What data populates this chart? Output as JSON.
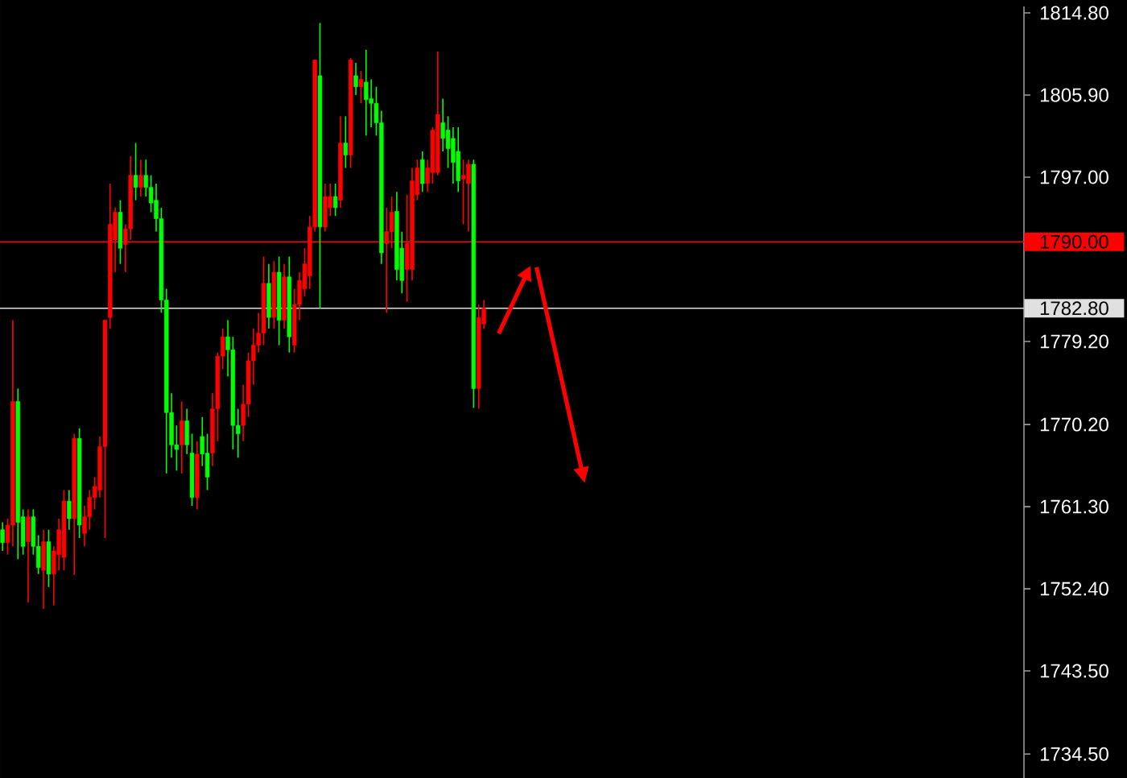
{
  "chart_data": {
    "type": "candlestick",
    "categories": [
      null,
      null,
      null,
      null,
      null,
      null,
      null,
      null,
      null,
      null,
      null,
      null,
      null,
      null,
      null,
      null,
      null,
      null,
      null,
      null,
      null,
      null,
      null,
      null,
      null,
      null,
      null,
      null,
      null,
      null,
      null,
      null,
      null,
      null,
      null,
      null,
      null,
      null,
      null,
      null,
      null,
      null,
      null,
      null,
      null,
      null,
      null,
      null,
      null,
      null,
      null,
      null,
      null,
      null,
      null,
      null,
      null,
      null,
      null,
      null,
      null,
      null,
      null,
      null,
      null,
      null,
      null,
      null,
      null,
      null,
      null,
      null,
      null,
      null,
      null,
      null,
      null,
      null,
      null,
      null,
      null,
      null,
      null,
      null,
      null,
      null,
      null,
      null,
      null,
      null,
      null,
      null,
      null,
      null,
      null,
      null,
      null,
      null,
      null,
      null,
      null,
      null,
      null,
      null,
      null,
      null,
      null,
      null,
      null,
      null,
      null,
      null,
      null,
      null,
      null,
      null,
      null,
      null,
      null,
      null,
      null,
      null,
      null,
      null,
      null,
      null,
      null,
      null,
      null,
      null,
      null,
      null,
      null,
      null,
      null,
      null,
      null,
      null,
      null,
      null,
      null,
      null,
      null,
      null,
      null,
      null,
      null,
      null,
      null,
      null,
      null,
      null,
      null,
      null,
      null,
      null,
      null,
      null,
      null,
      null,
      null,
      null,
      null,
      null,
      null,
      null,
      null,
      null,
      null,
      null,
      null,
      null,
      null,
      null,
      null,
      null,
      null,
      null,
      null,
      null,
      null,
      null,
      null,
      null,
      null,
      null,
      null,
      null,
      null,
      null,
      null,
      null,
      null,
      null,
      null,
      null,
      null,
      null,
      null,
      null
    ],
    "ohlc": [
      [
        1758.8,
        1759.6,
        1756.5,
        1757.4
      ],
      [
        1757.4,
        1760.0,
        1756.1,
        1759.3
      ],
      [
        1759.3,
        1781.5,
        1757.0,
        1772.7
      ],
      [
        1772.7,
        1774.1,
        1755.6,
        1759.6
      ],
      [
        1760.2,
        1761.0,
        1756.1,
        1757.0
      ],
      [
        1757.5,
        1761.0,
        1750.9,
        1760.2
      ],
      [
        1760.2,
        1761.0,
        1756.1,
        1757.0
      ],
      [
        1757.0,
        1758.2,
        1754.0,
        1754.7
      ],
      [
        1754.4,
        1758.8,
        1750.2,
        1757.5
      ],
      [
        1757.5,
        1758.8,
        1752.6,
        1754.0
      ],
      [
        1754.0,
        1757.0,
        1750.6,
        1756.5
      ],
      [
        1756.1,
        1760.0,
        1754.4,
        1758.8
      ],
      [
        1755.8,
        1763.1,
        1754.4,
        1761.9
      ],
      [
        1761.9,
        1763.1,
        1758.8,
        1760.0
      ],
      [
        1760.0,
        1769.2,
        1753.9,
        1768.7
      ],
      [
        1768.7,
        1769.8,
        1757.9,
        1759.3
      ],
      [
        1758.4,
        1761.4,
        1757.0,
        1760.2
      ],
      [
        1760.2,
        1763.1,
        1758.8,
        1762.3
      ],
      [
        1762.3,
        1764.5,
        1761.0,
        1763.5
      ],
      [
        1763.1,
        1768.9,
        1762.3,
        1767.8
      ],
      [
        1767.8,
        1781.5,
        1757.9,
        1781.5
      ],
      [
        1781.8,
        1796.3,
        1780.6,
        1791.9
      ],
      [
        1790.2,
        1793.7,
        1786.7,
        1793.2
      ],
      [
        1793.2,
        1794.5,
        1787.6,
        1789.3
      ],
      [
        1789.7,
        1791.9,
        1786.7,
        1791.4
      ],
      [
        1791.4,
        1799.3,
        1790.2,
        1797.2
      ],
      [
        1797.2,
        1800.7,
        1794.5,
        1795.9
      ],
      [
        1795.9,
        1798.9,
        1794.9,
        1797.2
      ],
      [
        1797.2,
        1798.9,
        1794.9,
        1795.9
      ],
      [
        1795.9,
        1797.2,
        1793.2,
        1794.2
      ],
      [
        1794.5,
        1796.3,
        1791.1,
        1792.5
      ],
      [
        1792.5,
        1793.7,
        1782.3,
        1783.7
      ],
      [
        1783.7,
        1784.9,
        1764.9,
        1771.5
      ],
      [
        1771.5,
        1773.6,
        1766.6,
        1768.0
      ],
      [
        1768.0,
        1770.1,
        1765.2,
        1767.5
      ],
      [
        1768.0,
        1772.7,
        1764.9,
        1770.6
      ],
      [
        1770.6,
        1771.9,
        1767.0,
        1768.0
      ],
      [
        1767.1,
        1769.2,
        1761.4,
        1762.3
      ],
      [
        1762.3,
        1768.4,
        1761.0,
        1767.0
      ],
      [
        1768.9,
        1771.0,
        1765.7,
        1767.0
      ],
      [
        1767.1,
        1769.2,
        1763.1,
        1764.5
      ],
      [
        1767.1,
        1773.6,
        1765.7,
        1771.9
      ],
      [
        1771.9,
        1778.0,
        1768.4,
        1777.6
      ],
      [
        1777.6,
        1780.6,
        1776.2,
        1779.7
      ],
      [
        1779.7,
        1781.5,
        1775.4,
        1778.3
      ],
      [
        1778.3,
        1779.7,
        1767.5,
        1770.1
      ],
      [
        1770.1,
        1771.9,
        1766.6,
        1769.2
      ],
      [
        1770.1,
        1774.5,
        1768.4,
        1772.4
      ],
      [
        1772.4,
        1778.0,
        1771.0,
        1777.1
      ],
      [
        1777.1,
        1780.6,
        1774.5,
        1778.8
      ],
      [
        1778.8,
        1782.3,
        1778.0,
        1780.1
      ],
      [
        1780.1,
        1788.4,
        1778.8,
        1785.5
      ],
      [
        1785.5,
        1787.6,
        1780.6,
        1781.8
      ],
      [
        1781.8,
        1787.9,
        1780.6,
        1786.7
      ],
      [
        1786.7,
        1788.4,
        1778.8,
        1781.5
      ],
      [
        1781.5,
        1787.6,
        1780.6,
        1786.2
      ],
      [
        1786.2,
        1788.4,
        1778.0,
        1779.7
      ],
      [
        1778.8,
        1784.9,
        1778.0,
        1783.2
      ],
      [
        1783.2,
        1786.7,
        1781.5,
        1785.8
      ],
      [
        1784.9,
        1789.3,
        1784.1,
        1787.6
      ],
      [
        1786.3,
        1792.8,
        1784.9,
        1791.6
      ],
      [
        1791.6,
        1809.7,
        1791.1,
        1809.7
      ],
      [
        1808.0,
        1813.7,
        1782.8,
        1791.6
      ],
      [
        1791.6,
        1796.3,
        1791.1,
        1794.9
      ],
      [
        1793.7,
        1796.3,
        1792.8,
        1794.9
      ],
      [
        1794.9,
        1796.3,
        1792.8,
        1793.7
      ],
      [
        1794.5,
        1803.6,
        1793.7,
        1800.7
      ],
      [
        1800.7,
        1803.6,
        1798.0,
        1799.4
      ],
      [
        1799.4,
        1809.9,
        1798.0,
        1809.7
      ],
      [
        1808.0,
        1809.4,
        1805.9,
        1806.8
      ],
      [
        1806.8,
        1808.5,
        1805.0,
        1807.6
      ],
      [
        1807.3,
        1810.8,
        1801.5,
        1805.4
      ],
      [
        1805.5,
        1807.6,
        1802.4,
        1805.0
      ],
      [
        1805.0,
        1806.8,
        1801.5,
        1802.9
      ],
      [
        1802.9,
        1804.2,
        1787.6,
        1788.8
      ],
      [
        1789.8,
        1793.7,
        1782.3,
        1791.1
      ],
      [
        1791.1,
        1794.9,
        1789.3,
        1793.2
      ],
      [
        1793.3,
        1795.4,
        1785.8,
        1787.0
      ],
      [
        1789.3,
        1791.1,
        1784.4,
        1785.8
      ],
      [
        1787.0,
        1795.1,
        1783.5,
        1789.8
      ],
      [
        1787.0,
        1798.0,
        1785.8,
        1796.6
      ],
      [
        1795.1,
        1798.9,
        1794.5,
        1798.0
      ],
      [
        1798.9,
        1799.8,
        1795.4,
        1796.3
      ],
      [
        1796.3,
        1798.9,
        1795.4,
        1798.0
      ],
      [
        1797.5,
        1802.4,
        1796.3,
        1802.1
      ],
      [
        1797.5,
        1810.6,
        1797.2,
        1803.8
      ],
      [
        1802.9,
        1805.5,
        1799.8,
        1801.2
      ],
      [
        1802.1,
        1803.6,
        1798.0,
        1800.1
      ],
      [
        1801.2,
        1802.4,
        1796.3,
        1798.6
      ],
      [
        1799.8,
        1802.4,
        1795.4,
        1796.6
      ],
      [
        1796.8,
        1798.9,
        1791.9,
        1797.2
      ],
      [
        1796.3,
        1798.9,
        1791.1,
        1798.4
      ],
      [
        1798.4,
        1798.9,
        1772.0,
        1774.1
      ],
      [
        1774.1,
        1783.2,
        1771.9,
        1781.8
      ],
      [
        1781.1,
        1783.7,
        1780.6,
        1782.8
      ],
      null,
      null,
      null,
      null,
      null,
      null,
      null,
      null,
      null,
      null,
      null,
      null,
      null,
      null,
      null,
      null,
      null,
      null,
      null,
      null,
      null,
      null,
      null,
      null,
      null,
      null,
      null,
      null,
      null,
      null,
      null,
      null,
      null,
      null,
      null,
      null,
      null,
      null,
      null,
      null,
      null,
      null,
      null,
      null,
      null,
      null,
      null,
      null,
      null,
      null,
      null,
      null,
      null,
      null,
      null,
      null,
      null,
      null,
      null,
      null,
      null,
      null,
      null,
      null,
      null,
      null,
      null,
      null,
      null,
      null,
      null,
      null,
      null,
      null,
      null,
      null,
      null,
      null,
      null,
      null,
      null,
      null,
      null,
      null,
      null,
      null,
      null,
      null,
      null,
      null,
      null,
      null,
      null,
      null,
      null,
      null,
      null,
      null,
      null,
      null,
      null,
      null,
      null,
      null,
      null
    ],
    "colors": [
      "#00ff00",
      "#ff0000",
      "#ff0000",
      "#00ff00",
      "#00ff00",
      "#ff0000",
      "#00ff00",
      "#00ff00",
      "#ff0000",
      "#00ff00",
      "#ff0000",
      "#ff0000",
      "#ff0000",
      "#00ff00",
      "#ff0000",
      "#00ff00",
      "#ff0000",
      "#ff0000",
      "#ff0000",
      "#ff0000",
      "#ff0000",
      "#ff0000",
      "#ff0000",
      "#00ff00",
      "#ff0000",
      "#ff0000",
      "#00ff00",
      "#ff0000",
      "#00ff00",
      "#00ff00",
      "#00ff00",
      "#00ff00",
      "#00ff00",
      "#00ff00",
      "#00ff00",
      "#ff0000",
      "#00ff00",
      "#00ff00",
      "#ff0000",
      "#00ff00",
      "#00ff00",
      "#ff0000",
      "#ff0000",
      "#ff0000",
      "#00ff00",
      "#00ff00",
      "#00ff00",
      "#ff0000",
      "#ff0000",
      "#ff0000",
      "#ff0000",
      "#ff0000",
      "#00ff00",
      "#ff0000",
      "#00ff00",
      "#ff0000",
      "#00ff00",
      "#ff0000",
      "#ff0000",
      "#ff0000",
      "#ff0000",
      "#ff0000",
      "#00ff00",
      "#ff0000",
      "#ff0000",
      "#00ff00",
      "#ff0000",
      "#00ff00",
      "#ff0000",
      "#00ff00",
      "#ff0000",
      "#00ff00",
      "#00ff00",
      "#00ff00",
      "#00ff00",
      "#ff0000",
      "#ff0000",
      "#00ff00",
      "#00ff00",
      "#ff0000",
      "#ff0000",
      "#ff0000",
      "#00ff00",
      "#ff0000",
      "#ff0000",
      "#ff0000",
      "#00ff00",
      "#00ff00",
      "#00ff00",
      "#00ff00",
      "#ff0000",
      "#ff0000",
      "#00ff00",
      "#ff0000",
      "#ff0000",
      null,
      null,
      null,
      null,
      null,
      null,
      null,
      null,
      null,
      null,
      null,
      null,
      null,
      null,
      null,
      null,
      null,
      null,
      null,
      null,
      null,
      null,
      null,
      null,
      null,
      null,
      null,
      null,
      null,
      null,
      null,
      null,
      null,
      null,
      null,
      null,
      null,
      null,
      null,
      null,
      null,
      null,
      null,
      null,
      null,
      null,
      null,
      null,
      null,
      null,
      null,
      null,
      null,
      null,
      null,
      null,
      null,
      null,
      null,
      null,
      null,
      null,
      null,
      null,
      null,
      null,
      null,
      null,
      null,
      null,
      null,
      null,
      null,
      null,
      null,
      null,
      null,
      null,
      null,
      null,
      null,
      null,
      null,
      null,
      null,
      null,
      null,
      null,
      null,
      null,
      null,
      null,
      null,
      null,
      null,
      null,
      null,
      null,
      null,
      null,
      null,
      null,
      null,
      null,
      null
    ],
    "ylim": [
      1731.9,
      1815.5
    ],
    "yticks": [
      {
        "value": 1734.5,
        "label": "1734.50"
      },
      {
        "value": 1743.5,
        "label": "1743.50"
      },
      {
        "value": 1752.4,
        "label": "1752.40"
      },
      {
        "value": 1761.3,
        "label": "1761.30"
      },
      {
        "value": 1770.2,
        "label": "1770.20"
      },
      {
        "value": 1779.2,
        "label": "1779.20"
      },
      {
        "value": 1797.0,
        "label": "1797.00"
      },
      {
        "value": 1805.9,
        "label": "1805.90"
      },
      {
        "value": 1814.8,
        "label": "1814.80"
      }
    ],
    "tick_labels": "y",
    "ref_lines": [
      {
        "axis": "y",
        "value": 1790.0,
        "label": "1790.00",
        "color": "#ff0000"
      },
      {
        "axis": "y",
        "value": 1782.8,
        "label": "1782.80",
        "color": "#e0e0e0"
      }
    ]
  }
}
